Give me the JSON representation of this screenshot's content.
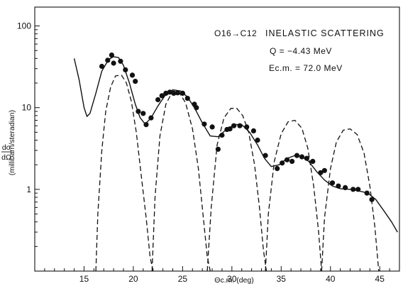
{
  "chart_data": {
    "type": "scatter",
    "xlabel": "Θc.m. (deg)",
    "ylabel_numerator": "dσ",
    "ylabel_denominator": "dΩ",
    "ylabel_units": "(millibarn/steradian)",
    "xlim": [
      10,
      47
    ],
    "ylim": [
      0.1,
      170
    ],
    "y_scale": "log",
    "grid": false,
    "x_ticks": [
      15,
      20,
      25,
      30,
      35,
      40,
      45
    ],
    "y_ticks": [
      1,
      10,
      100
    ],
    "annotation": {
      "reaction": "O16→C12",
      "title": "INELASTIC SCATTERING",
      "q_value": "Q = −4.43 MeV",
      "energy": "Ec.m. = 72.0 MeV"
    },
    "series": [
      {
        "kind": "points",
        "x": [
          16.8,
          17.4,
          17.8,
          18.0,
          18.7,
          19.2,
          19.9,
          20.2,
          20.5,
          21.0,
          21.3,
          21.8,
          22.5,
          22.9,
          23.3,
          23.7,
          24.1,
          24.5,
          25.0,
          25.5,
          26.2,
          26.4,
          27.2,
          28.0,
          28.6,
          29.0,
          29.5,
          29.8,
          30.2,
          30.8,
          31.5,
          32.2,
          32.6,
          33.4,
          34.6,
          35.1,
          35.6,
          36.1,
          36.6,
          37.1,
          37.6,
          38.2,
          39.0,
          39.4,
          40.2,
          40.8,
          41.5,
          42.3,
          42.8,
          43.7,
          44.2
        ],
        "y": [
          32,
          38,
          44,
          35,
          37,
          29,
          25,
          21,
          9,
          8.5,
          6.2,
          7.5,
          12.5,
          14,
          15,
          15.5,
          15,
          15.2,
          15,
          13,
          11,
          10,
          6.3,
          5.8,
          3.1,
          4.6,
          5.4,
          5.5,
          6,
          6,
          5.8,
          5.2,
          4,
          2.6,
          1.8,
          2.1,
          2.3,
          2.2,
          2.6,
          2.5,
          2.4,
          2.2,
          1.6,
          1.7,
          1.2,
          1.1,
          1.05,
          1.0,
          1.0,
          0.9,
          0.75
        ]
      },
      {
        "kind": "solid-curve",
        "x": [
          14.0,
          14.5,
          15.0,
          15.3,
          15.6,
          16.2,
          16.8,
          17.5,
          18.0,
          18.5,
          19.0,
          19.6,
          20.2,
          20.7,
          21.2,
          21.8,
          22.5,
          23.2,
          24.0,
          24.8,
          25.5,
          26.2,
          27.0,
          27.8,
          28.6,
          29.5,
          30.3,
          31.0,
          31.8,
          32.6,
          33.3,
          34.0,
          34.8,
          35.6,
          36.4,
          37.0,
          37.8,
          38.6,
          39.4,
          40.2,
          41.0,
          42.0,
          43.0,
          43.8,
          44.6,
          45.4,
          46.2,
          46.8
        ],
        "y": [
          40,
          22,
          10,
          7.8,
          8.5,
          15,
          28,
          39,
          42,
          41,
          33,
          20,
          11,
          7.5,
          6.3,
          7.5,
          10.5,
          14,
          16.5,
          16,
          13.5,
          10,
          6.5,
          4.5,
          4.4,
          5.5,
          6.2,
          6.2,
          5,
          3.5,
          2.4,
          1.9,
          2.0,
          2.4,
          2.6,
          2.55,
          2.2,
          1.65,
          1.3,
          1.1,
          1.02,
          1.0,
          0.95,
          0.9,
          0.75,
          0.55,
          0.4,
          0.3
        ]
      },
      {
        "kind": "dashed-curve",
        "segments": [
          {
            "x": [
              16.2,
              16.4,
              16.8,
              17.2,
              17.7,
              18.2,
              18.8,
              19.3,
              19.8,
              20.3,
              20.8,
              21.3,
              21.7,
              22.0
            ],
            "y": [
              0.1,
              0.5,
              3,
              9,
              18,
              24.5,
              25,
              20,
              12,
              5,
              1.5,
              0.45,
              0.15,
              0.1
            ]
          },
          {
            "x": [
              21.9,
              22.2,
              22.7,
              23.3,
              24.0,
              24.7,
              25.3,
              26.0,
              26.6,
              27.1,
              27.5,
              27.8
            ],
            "y": [
              0.1,
              0.8,
              4.5,
              11,
              16,
              15,
              11.5,
              5.5,
              1.8,
              0.45,
              0.15,
              0.1
            ]
          },
          {
            "x": [
              27.5,
              27.9,
              28.5,
              29.2,
              29.9,
              30.5,
              31.1,
              31.7,
              32.3,
              32.8,
              33.2,
              33.5
            ],
            "y": [
              0.1,
              0.6,
              3.5,
              7.5,
              9.8,
              9.8,
              8,
              5,
              2,
              0.6,
              0.18,
              0.1
            ]
          },
          {
            "x": [
              33.4,
              33.7,
              34.3,
              35.0,
              35.7,
              36.4,
              37.1,
              37.7,
              38.3,
              38.8,
              39.1
            ],
            "y": [
              0.1,
              0.5,
              2.2,
              4.8,
              6.7,
              7,
              5.6,
              3.2,
              1.1,
              0.3,
              0.1
            ]
          },
          {
            "x": [
              39.1,
              39.4,
              40.0,
              40.6,
              41.3,
              42.0,
              42.7,
              43.4,
              44.0,
              44.5,
              44.9
            ],
            "y": [
              0.1,
              0.45,
              1.8,
              3.8,
              5.3,
              5.5,
              4.7,
              2.8,
              1.1,
              0.35,
              0.1
            ]
          }
        ]
      }
    ]
  }
}
